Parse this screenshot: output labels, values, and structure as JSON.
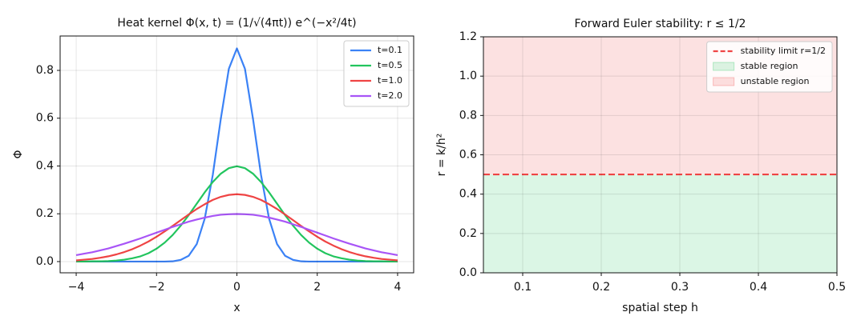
{
  "chart_data": [
    {
      "type": "line",
      "title": "Heat kernel Φ(x, t) = (1/√(4πt)) e^(−x²/4t)",
      "xlabel": "x",
      "ylabel": "Φ",
      "x": [
        -4,
        -3.8,
        -3.6,
        -3.4,
        -3.2,
        -3,
        -2.8,
        -2.6,
        -2.4,
        -2.2,
        -2,
        -1.8,
        -1.6,
        -1.4,
        -1.2,
        -1,
        -0.8,
        -0.6,
        -0.4,
        -0.2,
        0,
        0.2,
        0.4,
        0.6,
        0.8,
        1,
        1.2,
        1.4,
        1.6,
        1.8,
        2,
        2.2,
        2.4,
        2.6,
        2.8,
        3,
        3.2,
        3.4,
        3.6,
        3.8,
        4
      ],
      "series": [
        {
          "name": "t=0.1",
          "color": "#3b82f6",
          "values": [
            0,
            0,
            0,
            0,
            0,
            0,
            0,
            0,
            0,
            0,
            0,
            0,
            0.001,
            0.007,
            0.024,
            0.073,
            0.18,
            0.363,
            0.598,
            0.807,
            0.892,
            0.807,
            0.598,
            0.363,
            0.18,
            0.073,
            0.024,
            0.007,
            0.001,
            0,
            0,
            0,
            0,
            0,
            0,
            0,
            0,
            0,
            0,
            0,
            0
          ]
        },
        {
          "name": "t=0.5",
          "color": "#22c55e",
          "values": [
            0,
            0,
            0.001,
            0.001,
            0.002,
            0.004,
            0.008,
            0.014,
            0.022,
            0.035,
            0.054,
            0.079,
            0.111,
            0.15,
            0.194,
            0.242,
            0.29,
            0.333,
            0.368,
            0.391,
            0.399,
            0.391,
            0.368,
            0.333,
            0.29,
            0.242,
            0.194,
            0.15,
            0.111,
            0.079,
            0.054,
            0.035,
            0.022,
            0.014,
            0.008,
            0.004,
            0.002,
            0.001,
            0.001,
            0,
            0
          ]
        },
        {
          "name": "t=1.0",
          "color": "#ef4444",
          "values": [
            0.005,
            0.008,
            0.011,
            0.016,
            0.022,
            0.03,
            0.04,
            0.052,
            0.067,
            0.084,
            0.104,
            0.126,
            0.149,
            0.173,
            0.197,
            0.22,
            0.24,
            0.258,
            0.271,
            0.279,
            0.282,
            0.279,
            0.271,
            0.258,
            0.24,
            0.22,
            0.197,
            0.173,
            0.149,
            0.126,
            0.104,
            0.084,
            0.067,
            0.052,
            0.04,
            0.03,
            0.022,
            0.016,
            0.011,
            0.008,
            0.005
          ]
        },
        {
          "name": "t=2.0",
          "color": "#a855f7",
          "values": [
            0.027,
            0.033,
            0.039,
            0.047,
            0.055,
            0.065,
            0.075,
            0.086,
            0.097,
            0.109,
            0.121,
            0.133,
            0.145,
            0.156,
            0.167,
            0.176,
            0.184,
            0.191,
            0.196,
            0.198,
            0.199,
            0.198,
            0.196,
            0.191,
            0.184,
            0.176,
            0.167,
            0.156,
            0.145,
            0.133,
            0.121,
            0.109,
            0.097,
            0.086,
            0.075,
            0.065,
            0.055,
            0.047,
            0.039,
            0.033,
            0.027
          ]
        }
      ],
      "xlim": [
        -4.4,
        4.4
      ],
      "xticks": [
        {
          "value": -4,
          "label": "−4"
        },
        {
          "value": -2,
          "label": "−2"
        },
        0,
        2,
        4
      ],
      "ylim": [
        -0.047,
        0.944
      ],
      "yticks": [
        {
          "value": 0,
          "label": "0.0"
        },
        0.2,
        0.4,
        0.6,
        0.8
      ],
      "grid": true,
      "legend": "upper right"
    },
    {
      "type": "line",
      "title": "Forward Euler stability: r ≤ 1/2",
      "xlabel": "spatial step h",
      "ylabel": "r = k/h²",
      "x": [
        0.05,
        0.5
      ],
      "series": [
        {
          "name": "stability limit r=1/2",
          "color": "#ef4444",
          "linestyle": "dashed",
          "values": [
            0.5,
            0.5
          ]
        }
      ],
      "regions": [
        {
          "name": "stable region",
          "color": "#22c55e",
          "alpha": 0.16,
          "range": [
            0,
            0.5
          ]
        },
        {
          "name": "unstable region",
          "color": "#ef4444",
          "alpha": 0.16,
          "range": [
            0.5,
            1.2
          ]
        }
      ],
      "xlim": [
        0.05,
        0.5
      ],
      "xticks": [
        0.1,
        0.2,
        0.3,
        0.4,
        0.5
      ],
      "ylim": [
        0,
        1.2
      ],
      "yticks": [
        {
          "value": 0,
          "label": "0.0"
        },
        0.2,
        0.4,
        0.6,
        0.8,
        {
          "value": 1,
          "label": "1.0"
        },
        1.2
      ],
      "grid": true,
      "legend": "upper right"
    }
  ]
}
